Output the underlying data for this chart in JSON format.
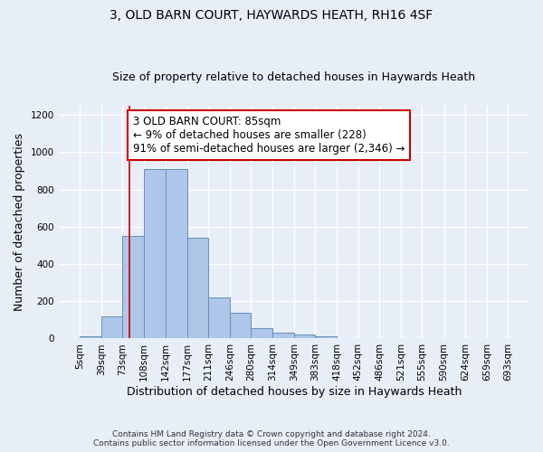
{
  "title": "3, OLD BARN COURT, HAYWARDS HEATH, RH16 4SF",
  "subtitle": "Size of property relative to detached houses in Haywards Heath",
  "xlabel": "Distribution of detached houses by size in Haywards Heath",
  "ylabel": "Number of detached properties",
  "footer_line1": "Contains HM Land Registry data © Crown copyright and database right 2024.",
  "footer_line2": "Contains public sector information licensed under the Open Government Licence v3.0.",
  "bin_edges": [
    5,
    39,
    73,
    108,
    142,
    177,
    211,
    246,
    280,
    314,
    349,
    383,
    418,
    452,
    486,
    521,
    555,
    590,
    624,
    659,
    693
  ],
  "bar_heights": [
    10,
    120,
    550,
    910,
    910,
    540,
    220,
    140,
    55,
    33,
    20,
    10,
    0,
    0,
    0,
    0,
    0,
    0,
    0,
    0
  ],
  "bar_color": "#aec6e8",
  "bar_edge_color": "#6090bb",
  "vline_x": 85,
  "vline_color": "#cc0000",
  "annotation_text": "3 OLD BARN COURT: 85sqm\n← 9% of detached houses are smaller (228)\n91% of semi-detached houses are larger (2,346) →",
  "annotation_box_color": "#ffffff",
  "annotation_border_color": "#cc0000",
  "ylim": [
    0,
    1250
  ],
  "yticks": [
    0,
    200,
    400,
    600,
    800,
    1000,
    1200
  ],
  "bg_color": "#e8eef8",
  "plot_bg_color": "#e8eef8",
  "grid_color": "#ffffff",
  "title_fontsize": 10,
  "subtitle_fontsize": 9,
  "xlabel_fontsize": 9,
  "ylabel_fontsize": 9,
  "tick_fontsize": 7.5,
  "annotation_fontsize": 8.5,
  "footer_fontsize": 6.5
}
